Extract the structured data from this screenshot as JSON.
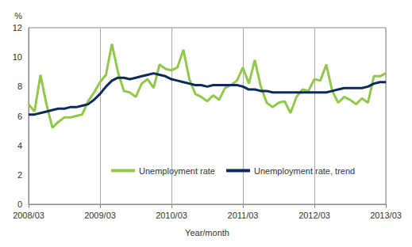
{
  "chart_data": {
    "type": "line",
    "x_label": "Year/month",
    "y_label": "%",
    "categories": [
      "2008/03",
      null,
      null,
      null,
      null,
      null,
      null,
      null,
      null,
      null,
      null,
      null,
      "2009/03",
      null,
      null,
      null,
      null,
      null,
      null,
      null,
      null,
      null,
      null,
      null,
      "2010/03",
      null,
      null,
      null,
      null,
      null,
      null,
      null,
      null,
      null,
      null,
      null,
      "2011/03",
      null,
      null,
      null,
      null,
      null,
      null,
      null,
      null,
      null,
      null,
      null,
      "2012/03",
      null,
      null,
      null,
      null,
      null,
      null,
      null,
      null,
      null,
      null,
      null,
      "2013/03"
    ],
    "series": [
      {
        "name": "Unemployment rate",
        "color": "#92c84a",
        "values": [
          6.8,
          6.3,
          8.8,
          6.8,
          5.2,
          5.6,
          5.9,
          5.9,
          6.0,
          6.1,
          7.0,
          7.6,
          8.3,
          8.8,
          10.9,
          9.0,
          7.7,
          7.6,
          7.3,
          8.2,
          8.5,
          7.9,
          9.5,
          9.2,
          9.1,
          9.3,
          10.5,
          8.5,
          7.5,
          7.3,
          7.0,
          7.4,
          7.1,
          7.9,
          8.1,
          8.4,
          9.3,
          8.2,
          9.8,
          8.0,
          6.9,
          6.6,
          6.9,
          7.0,
          6.2,
          7.3,
          7.8,
          7.7,
          8.5,
          8.4,
          9.5,
          7.7,
          6.9,
          7.3,
          7.1,
          6.8,
          7.2,
          6.9,
          8.7,
          8.7,
          8.9
        ]
      },
      {
        "name": "Unemployment rate, trend",
        "color": "#0d2a5c",
        "values": [
          6.1,
          6.1,
          6.2,
          6.3,
          6.4,
          6.5,
          6.5,
          6.6,
          6.6,
          6.7,
          6.8,
          7.1,
          7.5,
          8.0,
          8.4,
          8.6,
          8.6,
          8.5,
          8.6,
          8.7,
          8.8,
          8.9,
          8.8,
          8.7,
          8.5,
          8.4,
          8.3,
          8.2,
          8.1,
          8.1,
          8.0,
          8.1,
          8.1,
          8.1,
          8.1,
          8.1,
          8.0,
          7.8,
          7.8,
          7.7,
          7.7,
          7.6,
          7.6,
          7.6,
          7.6,
          7.6,
          7.6,
          7.6,
          7.6,
          7.6,
          7.6,
          7.7,
          7.8,
          7.9,
          7.9,
          7.9,
          7.9,
          8.0,
          8.2,
          8.3,
          8.3
        ]
      }
    ],
    "ylim": [
      0,
      12
    ],
    "yticks": [
      0,
      2,
      4,
      6,
      8,
      10,
      12
    ],
    "grid": true,
    "legend": "bottom"
  }
}
